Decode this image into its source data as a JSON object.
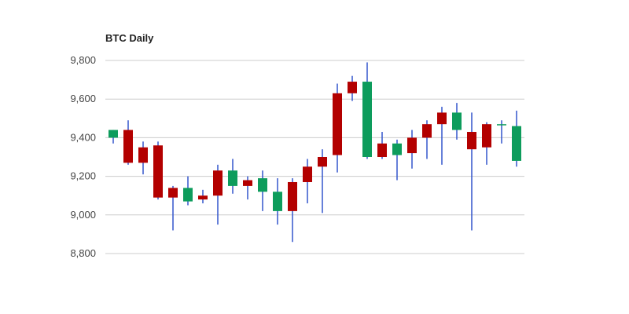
{
  "chart_data": {
    "type": "candlestick",
    "title": "BTC Daily",
    "xlabel": "",
    "ylabel": "",
    "ylim": [
      8800,
      9800
    ],
    "yticks": [
      {
        "value": 9800,
        "label": "9,800"
      },
      {
        "value": 9600,
        "label": "9,600"
      },
      {
        "value": 9400,
        "label": "9,400"
      },
      {
        "value": 9200,
        "label": "9,200"
      },
      {
        "value": 9000,
        "label": "9,000"
      },
      {
        "value": 8800,
        "label": "8,800"
      }
    ],
    "grid": true,
    "legend": "none",
    "colors": {
      "up": "#0d9c5c",
      "down": "#b30000",
      "wick": "#3355cc",
      "grid": "#cccccc"
    },
    "candles": [
      {
        "open": 9400,
        "high": 9440,
        "low": 9370,
        "close": 9440
      },
      {
        "open": 9440,
        "high": 9490,
        "low": 9260,
        "close": 9270
      },
      {
        "open": 9350,
        "high": 9380,
        "low": 9210,
        "close": 9270
      },
      {
        "open": 9360,
        "high": 9380,
        "low": 9080,
        "close": 9090
      },
      {
        "open": 9140,
        "high": 9150,
        "low": 8920,
        "close": 9090
      },
      {
        "open": 9070,
        "high": 9200,
        "low": 9050,
        "close": 9140
      },
      {
        "open": 9100,
        "high": 9130,
        "low": 9060,
        "close": 9080
      },
      {
        "open": 9230,
        "high": 9260,
        "low": 8950,
        "close": 9100
      },
      {
        "open": 9150,
        "high": 9290,
        "low": 9110,
        "close": 9230
      },
      {
        "open": 9180,
        "high": 9200,
        "low": 9080,
        "close": 9150
      },
      {
        "open": 9120,
        "high": 9230,
        "low": 9020,
        "close": 9190
      },
      {
        "open": 9020,
        "high": 9190,
        "low": 8950,
        "close": 9120
      },
      {
        "open": 9170,
        "high": 9190,
        "low": 8860,
        "close": 9020
      },
      {
        "open": 9250,
        "high": 9290,
        "low": 9060,
        "close": 9170
      },
      {
        "open": 9300,
        "high": 9340,
        "low": 9010,
        "close": 9250
      },
      {
        "open": 9630,
        "high": 9680,
        "low": 9220,
        "close": 9310
      },
      {
        "open": 9690,
        "high": 9720,
        "low": 9590,
        "close": 9630
      },
      {
        "open": 9300,
        "high": 9790,
        "low": 9290,
        "close": 9690
      },
      {
        "open": 9370,
        "high": 9430,
        "low": 9290,
        "close": 9300
      },
      {
        "open": 9310,
        "high": 9390,
        "low": 9180,
        "close": 9370
      },
      {
        "open": 9400,
        "high": 9440,
        "low": 9240,
        "close": 9320
      },
      {
        "open": 9470,
        "high": 9490,
        "low": 9290,
        "close": 9400
      },
      {
        "open": 9530,
        "high": 9560,
        "low": 9260,
        "close": 9470
      },
      {
        "open": 9440,
        "high": 9580,
        "low": 9390,
        "close": 9530
      },
      {
        "open": 9430,
        "high": 9530,
        "low": 8920,
        "close": 9340
      },
      {
        "open": 9470,
        "high": 9480,
        "low": 9260,
        "close": 9350
      },
      {
        "open": 9470,
        "high": 9490,
        "low": 9370,
        "close": 9470
      },
      {
        "open": 9280,
        "high": 9540,
        "low": 9250,
        "close": 9460
      }
    ]
  }
}
